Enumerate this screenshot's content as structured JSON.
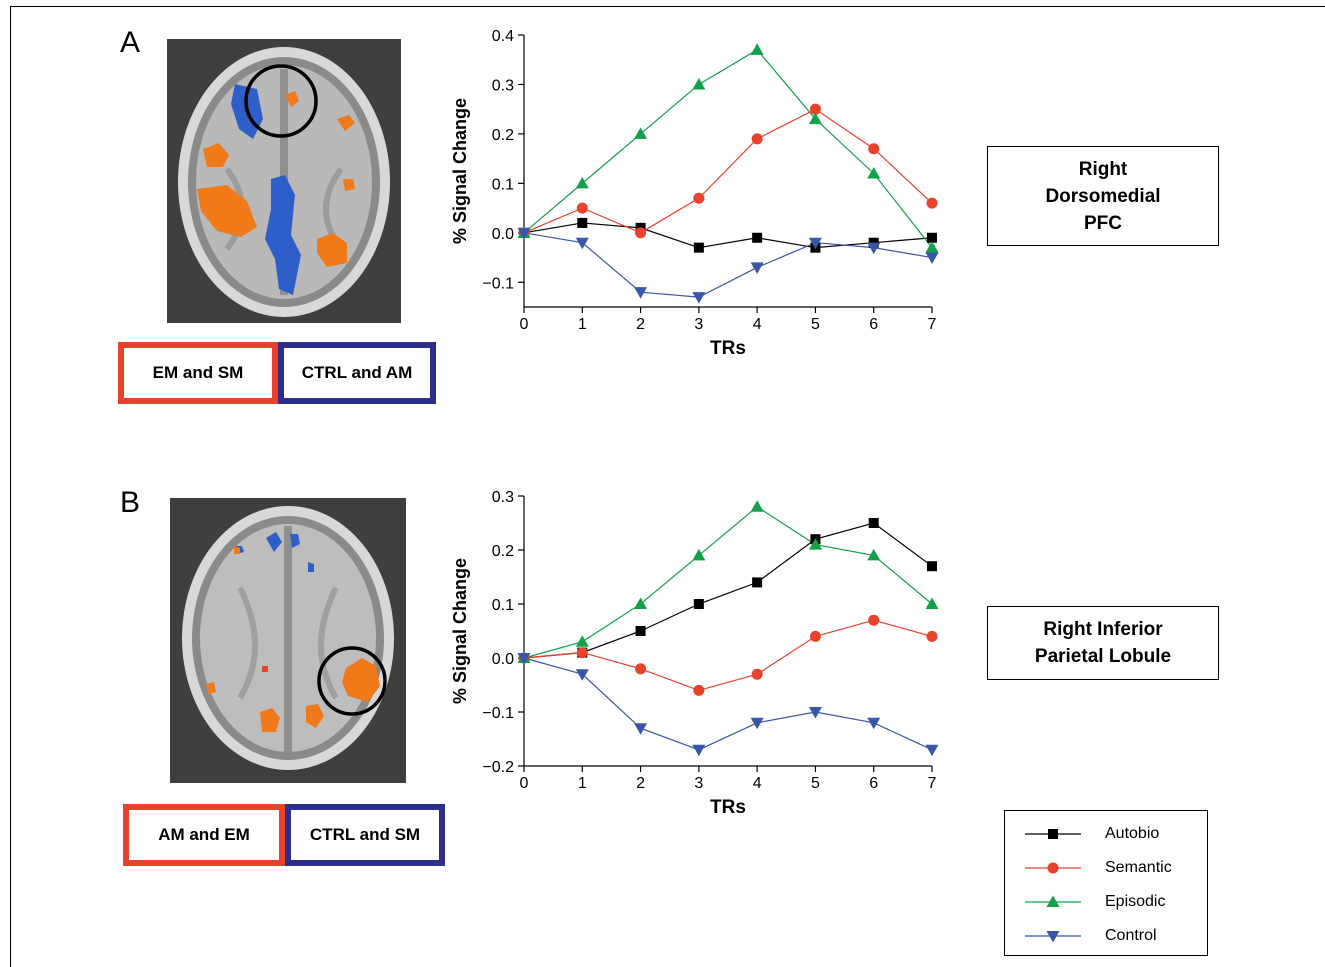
{
  "panels": [
    {
      "letter": "A",
      "legend": [
        {
          "label": "EM and  SM",
          "color": "#e8412c"
        },
        {
          "label": "CTRL and  AM",
          "color": "#2c2f8c"
        }
      ],
      "region_lines": [
        "Right",
        "Dorsomedial",
        "PFC"
      ]
    },
    {
      "letter": "B",
      "legend": [
        {
          "label": "AM and  EM",
          "color": "#e8412c"
        },
        {
          "label": "CTRL and  SM",
          "color": "#2c2f8c"
        }
      ],
      "region_lines": [
        "Right Inferior",
        "Parietal Lobule"
      ]
    }
  ],
  "series_style": [
    {
      "name": "Autobio",
      "color": "#000000",
      "marker": "square"
    },
    {
      "name": "Semantic",
      "color": "#e8412c",
      "marker": "circle"
    },
    {
      "name": "Episodic",
      "color": "#12a04a",
      "marker": "triangle-up"
    },
    {
      "name": "Control",
      "color": "#3a56a8",
      "marker": "triangle-down"
    }
  ],
  "chart_data": [
    {
      "type": "line",
      "xlabel": "TRs",
      "ylabel": "% Signal Change",
      "x": [
        0,
        1,
        2,
        3,
        4,
        5,
        6,
        7
      ],
      "ylim": [
        -0.15,
        0.4
      ],
      "yticks": [
        -0.1,
        0.0,
        0.1,
        0.2,
        0.3,
        0.4
      ],
      "ytick_labels": [
        "−0.1",
        "0.0",
        "0.1",
        "0.2",
        "0.3",
        "0.4"
      ],
      "series": [
        {
          "name": "Autobio",
          "values": [
            0.0,
            0.02,
            0.01,
            -0.03,
            -0.01,
            -0.03,
            -0.02,
            -0.01
          ]
        },
        {
          "name": "Semantic",
          "values": [
            0.0,
            0.05,
            0.0,
            0.07,
            0.19,
            0.25,
            0.17,
            0.06
          ]
        },
        {
          "name": "Episodic",
          "values": [
            0.0,
            0.1,
            0.2,
            0.3,
            0.37,
            0.23,
            0.12,
            -0.03
          ]
        },
        {
          "name": "Control",
          "values": [
            0.0,
            -0.02,
            -0.12,
            -0.13,
            -0.07,
            -0.02,
            -0.03,
            -0.05
          ]
        }
      ]
    },
    {
      "type": "line",
      "xlabel": "TRs",
      "ylabel": "% Signal Change",
      "x": [
        0,
        1,
        2,
        3,
        4,
        5,
        6,
        7
      ],
      "ylim": [
        -0.2,
        0.3
      ],
      "yticks": [
        -0.2,
        -0.1,
        0.0,
        0.1,
        0.2,
        0.3
      ],
      "ytick_labels": [
        "−0.2",
        "−0.1",
        "0.0",
        "0.1",
        "0.2",
        "0.3"
      ],
      "series": [
        {
          "name": "Autobio",
          "values": [
            0.0,
            0.01,
            0.05,
            0.1,
            0.14,
            0.22,
            0.25,
            0.17
          ]
        },
        {
          "name": "Semantic",
          "values": [
            0.0,
            0.01,
            -0.02,
            -0.06,
            -0.03,
            0.04,
            0.07,
            0.04
          ]
        },
        {
          "name": "Episodic",
          "values": [
            0.0,
            0.03,
            0.1,
            0.19,
            0.28,
            0.21,
            0.19,
            0.1
          ]
        },
        {
          "name": "Control",
          "values": [
            0.0,
            -0.03,
            -0.13,
            -0.17,
            -0.12,
            -0.1,
            -0.12,
            -0.17
          ]
        }
      ]
    }
  ]
}
